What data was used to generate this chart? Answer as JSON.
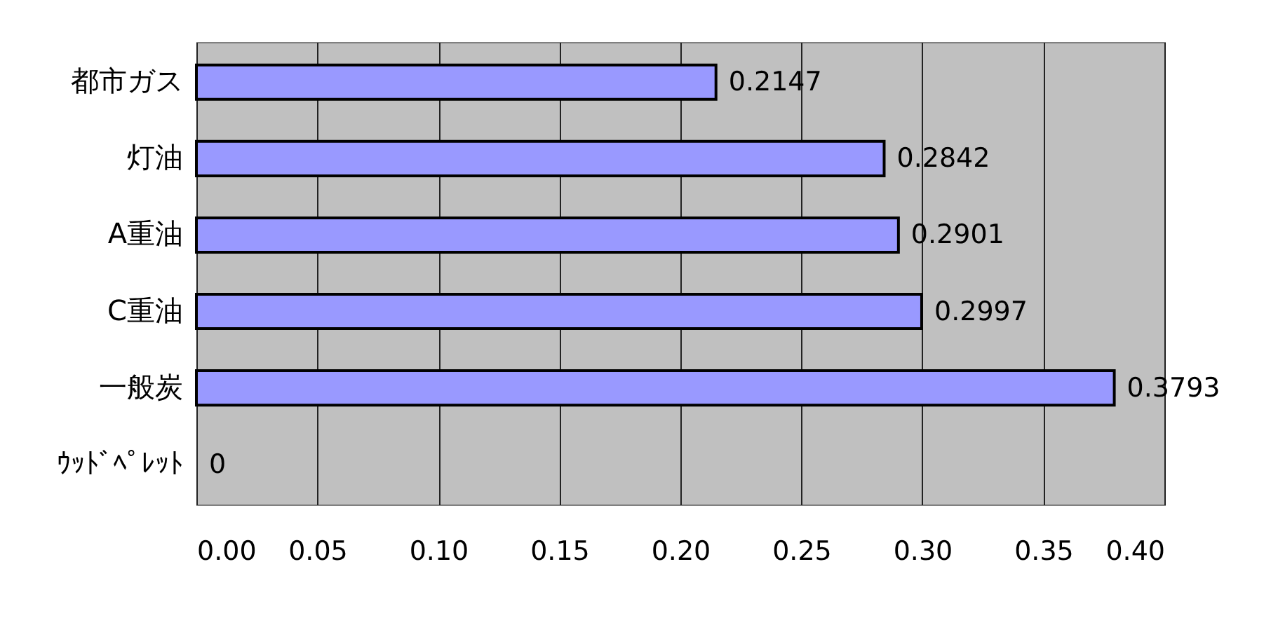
{
  "chart_data": {
    "type": "bar",
    "orientation": "horizontal",
    "categories": [
      "都市ガス",
      "灯油",
      "A重油",
      "C重油",
      "一般炭",
      "ｳｯﾄﾞﾍﾟﾚｯﾄ"
    ],
    "values": [
      0.2147,
      0.2842,
      0.2901,
      0.2997,
      0.3793,
      0
    ],
    "color": "#9999ff",
    "data_labels": true,
    "grid": "x",
    "xlim": [
      0,
      0.4
    ],
    "xticks": [
      {
        "value": 0,
        "label": "0.00"
      },
      {
        "value": 0.05,
        "label": "0.05"
      },
      {
        "value": 0.1,
        "label": "0.10"
      },
      {
        "value": 0.15,
        "label": "0.15"
      },
      {
        "value": 0.2,
        "label": "0.20"
      },
      {
        "value": 0.25,
        "label": "0.25"
      },
      {
        "value": 0.3,
        "label": "0.30"
      },
      {
        "value": 0.35,
        "label": "0.35"
      },
      {
        "value": 0.4,
        "label": "0.40"
      }
    ]
  }
}
